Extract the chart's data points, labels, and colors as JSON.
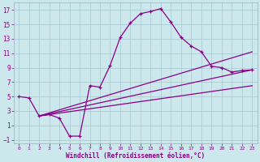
{
  "xlabel": "Windchill (Refroidissement éolien,°C)",
  "background_color": "#cce8ec",
  "grid_color": "#aacdd4",
  "line_color": "#880088",
  "xlim": [
    -0.5,
    23.5
  ],
  "ylim": [
    -1.5,
    18.0
  ],
  "xticks": [
    0,
    1,
    2,
    3,
    4,
    5,
    6,
    7,
    8,
    9,
    10,
    11,
    12,
    13,
    14,
    15,
    16,
    17,
    18,
    19,
    20,
    21,
    22,
    23
  ],
  "yticks": [
    -1,
    1,
    3,
    5,
    7,
    9,
    11,
    13,
    15,
    17
  ],
  "main_x": [
    0,
    1,
    2,
    3,
    4,
    5,
    6,
    7,
    8,
    9,
    10,
    11,
    12,
    13,
    14,
    15,
    16,
    17,
    18,
    19,
    20,
    21,
    22,
    23
  ],
  "main_y": [
    5,
    4.8,
    2.3,
    2.5,
    2.0,
    -0.5,
    -0.5,
    6.5,
    6.3,
    9.3,
    13.2,
    15.2,
    16.5,
    16.8,
    17.2,
    15.3,
    13.2,
    12.0,
    11.2,
    9.2,
    9.0,
    8.4,
    8.6,
    8.7
  ],
  "fan_start_x": 2,
  "fan_start_y": 2.3,
  "fan_lines": [
    {
      "end_x": 23,
      "end_y": 11.2
    },
    {
      "end_x": 23,
      "end_y": 8.7
    },
    {
      "end_x": 23,
      "end_y": 6.5
    }
  ]
}
